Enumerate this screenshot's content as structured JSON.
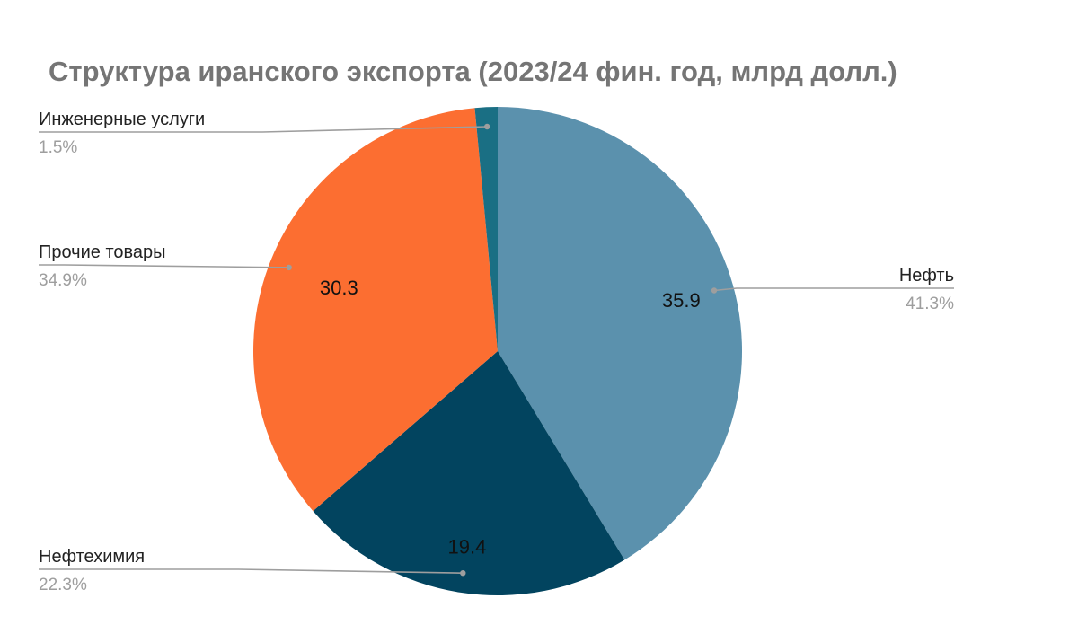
{
  "chart_data": {
    "type": "pie",
    "title": "Структура иранского экспорта (2023/24 фин. год, млрд долл.)",
    "slices": [
      {
        "name": "Нефть",
        "value": 35.9,
        "value_label": "35.9",
        "percent_label": "41.3%",
        "color": "#5b91ad"
      },
      {
        "name": "Нефтехимия",
        "value": 19.4,
        "value_label": "19.4",
        "percent_label": "22.3%",
        "color": "#02445f"
      },
      {
        "name": "Прочие товары",
        "value": 30.3,
        "value_label": "30.3",
        "percent_label": "34.9%",
        "color": "#fc6e31"
      },
      {
        "name": "Инженерные услуги",
        "value": 1.3,
        "value_label": "",
        "percent_label": "1.5%",
        "color": "#1a6f84"
      }
    ],
    "start_angle": "12 o'clock",
    "direction": "clockwise",
    "legend": "none"
  }
}
